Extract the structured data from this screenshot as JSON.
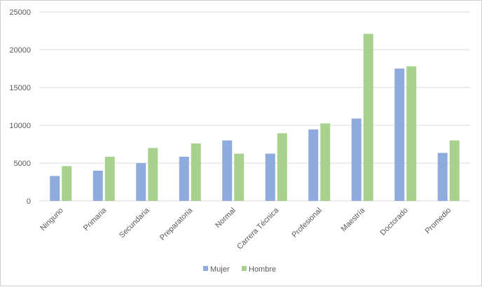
{
  "chart_data": {
    "type": "bar",
    "categories": [
      "Ninguno",
      "Primaria",
      "Secundaria",
      "Preparatoria",
      "Normal",
      "Carrera Técnica",
      "Profesional",
      "Maestría",
      "Doctorado",
      "Promedio"
    ],
    "series": [
      {
        "name": "Mujer",
        "color": "#8faadc",
        "values": [
          3300,
          4000,
          5000,
          5850,
          8000,
          6250,
          9450,
          10900,
          17500,
          6350
        ]
      },
      {
        "name": "Hombre",
        "color": "#a9d18e",
        "values": [
          4600,
          5850,
          7000,
          7600,
          6250,
          8950,
          10250,
          22100,
          17800,
          8000
        ]
      }
    ],
    "ylim": [
      0,
      25000
    ],
    "yticks": [
      0,
      5000,
      10000,
      15000,
      20000,
      25000
    ],
    "grid": true,
    "gridColor": "#d9d9d9",
    "legend_position": "bottom"
  }
}
